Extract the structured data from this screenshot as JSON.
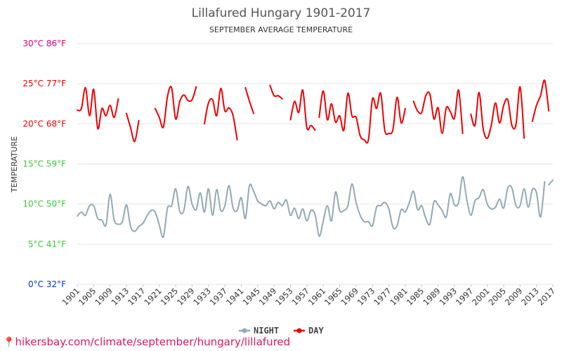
{
  "chart_data": {
    "type": "line",
    "title": "Lillafured Hungary 1901-2017",
    "subtitle": "SEPTEMBER AVERAGE TEMPERATURE",
    "ylabel": "TEMPERATURE",
    "ylim": [
      0,
      30
    ],
    "xlim": [
      1901,
      2017
    ],
    "y_ticks": [
      {
        "value": 0,
        "label": "0°C 32°F",
        "color": "#0033cc"
      },
      {
        "value": 5,
        "label": "5°C 41°F",
        "color": "#33cc33"
      },
      {
        "value": 10,
        "label": "10°C 50°F",
        "color": "#33cc33"
      },
      {
        "value": 15,
        "label": "15°C 59°F",
        "color": "#33cc33"
      },
      {
        "value": 20,
        "label": "20°C 68°F",
        "color": "#ee0000"
      },
      {
        "value": 25,
        "label": "25°C 77°F",
        "color": "#ee0000"
      },
      {
        "value": 30,
        "label": "30°C 86°F",
        "color": "#dd0077"
      }
    ],
    "x_ticks": [
      1901,
      1905,
      1909,
      1913,
      1917,
      1921,
      1925,
      1929,
      1933,
      1937,
      1941,
      1945,
      1949,
      1953,
      1957,
      1961,
      1965,
      1969,
      1973,
      1977,
      1981,
      1985,
      1989,
      1993,
      1997,
      2001,
      2005,
      2009,
      2013,
      2017
    ],
    "grid": true,
    "legend_position": "bottom-center",
    "series": [
      {
        "name": "NIGHT",
        "color": "#90aab6",
        "points": [
          [
            1901,
            8.5
          ],
          [
            1902,
            9
          ],
          [
            1903,
            8.6
          ],
          [
            1904,
            9.8
          ],
          [
            1905,
            9.8
          ],
          [
            1906,
            8.2
          ],
          [
            1907,
            8
          ],
          [
            1908,
            7.4
          ],
          [
            1909,
            11.2
          ],
          [
            1910,
            8
          ],
          [
            1911,
            7.5
          ],
          [
            1912,
            7.8
          ],
          [
            1913,
            9.9
          ],
          [
            1914,
            7.2
          ],
          [
            1915,
            6.6
          ],
          [
            1916,
            7.2
          ],
          [
            1917,
            7.6
          ],
          [
            1918,
            8.5
          ],
          [
            1919,
            9.2
          ],
          [
            1920,
            9
          ],
          [
            1921,
            7.4
          ],
          [
            1922,
            5.9
          ],
          [
            1923,
            9.5
          ],
          [
            1924,
            9.8
          ],
          [
            1925,
            11.9
          ],
          [
            1926,
            9.1
          ],
          [
            1927,
            9.2
          ],
          [
            1928,
            12.2
          ],
          [
            1929,
            10
          ],
          [
            1930,
            9.3
          ],
          [
            1931,
            11.4
          ],
          [
            1932,
            9
          ],
          [
            1933,
            11.9
          ],
          [
            1934,
            8.6
          ],
          [
            1935,
            11.8
          ],
          [
            1936,
            9.2
          ],
          [
            1937,
            9.8
          ],
          [
            1938,
            12.3
          ],
          [
            1939,
            9.5
          ],
          [
            1940,
            9.2
          ],
          [
            1941,
            10.8
          ],
          [
            1942,
            8.2
          ],
          [
            1943,
            12.3
          ],
          [
            1944,
            11.6
          ],
          [
            1945,
            10.4
          ],
          [
            1946,
            10
          ],
          [
            1947,
            9.8
          ],
          [
            1948,
            10.4
          ],
          [
            1949,
            9.4
          ],
          [
            1950,
            10.2
          ],
          [
            1951,
            9.8
          ],
          [
            1952,
            10.5
          ],
          [
            1953,
            8.6
          ],
          [
            1954,
            9.5
          ],
          [
            1955,
            8.2
          ],
          [
            1956,
            9.4
          ],
          [
            1957,
            7.9
          ],
          [
            1958,
            9.2
          ],
          [
            1959,
            8.7
          ],
          [
            1960,
            6
          ],
          [
            1961,
            7.9
          ],
          [
            1962,
            9.8
          ],
          [
            1963,
            7.9
          ],
          [
            1964,
            11.5
          ],
          [
            1965,
            9.2
          ],
          [
            1966,
            9.2
          ],
          [
            1967,
            9.8
          ],
          [
            1968,
            12.5
          ],
          [
            1969,
            10.2
          ],
          [
            1970,
            8.6
          ],
          [
            1971,
            7.8
          ],
          [
            1972,
            7.8
          ],
          [
            1973,
            7.3
          ],
          [
            1974,
            9.6
          ],
          [
            1975,
            9.8
          ],
          [
            1976,
            10.2
          ],
          [
            1977,
            9.4
          ],
          [
            1978,
            7.1
          ],
          [
            1979,
            7.3
          ],
          [
            1980,
            9.3
          ],
          [
            1981,
            9
          ],
          [
            1982,
            10.2
          ],
          [
            1983,
            11.6
          ],
          [
            1984,
            9.3
          ],
          [
            1985,
            9.8
          ],
          [
            1986,
            8.2
          ],
          [
            1987,
            7.5
          ],
          [
            1988,
            10.3
          ],
          [
            1989,
            9.9
          ],
          [
            1990,
            9.2
          ],
          [
            1991,
            8.4
          ],
          [
            1992,
            11.3
          ],
          [
            1993,
            9.9
          ],
          [
            1994,
            10.2
          ],
          [
            1995,
            13.4
          ],
          [
            1996,
            10.6
          ],
          [
            1997,
            8.6
          ],
          [
            1998,
            10.4
          ],
          [
            1999,
            10.8
          ],
          [
            2000,
            11.8
          ],
          [
            2001,
            10
          ],
          [
            2002,
            9.4
          ],
          [
            2003,
            9.6
          ],
          [
            2004,
            10.6
          ],
          [
            2005,
            9.5
          ],
          [
            2006,
            12
          ],
          [
            2007,
            12
          ],
          [
            2008,
            9.8
          ],
          [
            2009,
            9.8
          ],
          [
            2010,
            11.9
          ],
          [
            2011,
            9.6
          ],
          [
            2012,
            11.8
          ],
          [
            2013,
            11.4
          ],
          [
            2014,
            8.4
          ],
          [
            2015,
            12.8
          ],
          [
            null,
            null
          ],
          [
            2016,
            12.4
          ],
          [
            2017,
            13
          ]
        ]
      },
      {
        "name": "DAY",
        "color": "#ee0000",
        "points": [
          [
            1901,
            21.7
          ],
          [
            1902,
            21.9
          ],
          [
            1903,
            24.5
          ],
          [
            1904,
            21
          ],
          [
            1905,
            24.3
          ],
          [
            1906,
            19.4
          ],
          [
            1907,
            21.9
          ],
          [
            1908,
            21
          ],
          [
            1909,
            22.3
          ],
          [
            1910,
            20.8
          ],
          [
            1911,
            23.1
          ],
          [
            null,
            null
          ],
          [
            1913,
            21.3
          ],
          [
            1914,
            19.5
          ],
          [
            1915,
            17.8
          ],
          [
            1916,
            20.4
          ],
          [
            null,
            null
          ],
          [
            1920,
            21.9
          ],
          [
            1921,
            20.8
          ],
          [
            1922,
            19.6
          ],
          [
            1923,
            23.4
          ],
          [
            1924,
            24.5
          ],
          [
            1925,
            20.6
          ],
          [
            1926,
            22.8
          ],
          [
            1927,
            23.6
          ],
          [
            1928,
            22.9
          ],
          [
            1929,
            23
          ],
          [
            1930,
            24.6
          ],
          [
            null,
            null
          ],
          [
            1932,
            20
          ],
          [
            1933,
            22.6
          ],
          [
            1934,
            23
          ],
          [
            1935,
            21
          ],
          [
            1936,
            24.4
          ],
          [
            1937,
            21.6
          ],
          [
            1938,
            22
          ],
          [
            1939,
            21
          ],
          [
            1940,
            18
          ],
          [
            null,
            null
          ],
          [
            1942,
            24.5
          ],
          [
            1943,
            22.8
          ],
          [
            1944,
            21.3
          ],
          [
            null,
            null
          ],
          [
            1948,
            24.8
          ],
          [
            1949,
            23.5
          ],
          [
            1950,
            23.5
          ],
          [
            1951,
            23.1
          ],
          [
            null,
            null
          ],
          [
            1953,
            20.5
          ],
          [
            1954,
            22.8
          ],
          [
            1955,
            21.4
          ],
          [
            1956,
            24.2
          ],
          [
            1957,
            19.5
          ],
          [
            1958,
            19.8
          ],
          [
            1959,
            19.2
          ],
          [
            null,
            null
          ],
          [
            1960,
            20.8
          ],
          [
            1961,
            24.1
          ],
          [
            1962,
            20.5
          ],
          [
            1963,
            22.5
          ],
          [
            1964,
            20.2
          ],
          [
            1965,
            21
          ],
          [
            1966,
            19.2
          ],
          [
            1967,
            23.8
          ],
          [
            1968,
            21
          ],
          [
            1969,
            20.8
          ],
          [
            1970,
            18.5
          ],
          [
            1971,
            18
          ],
          [
            1972,
            18
          ],
          [
            1973,
            23.1
          ],
          [
            1974,
            21.9
          ],
          [
            1975,
            23.8
          ],
          [
            1976,
            19.2
          ],
          [
            1977,
            18.8
          ],
          [
            1978,
            19.3
          ],
          [
            1979,
            23.3
          ],
          [
            1980,
            20.1
          ],
          [
            1981,
            21.9
          ],
          [
            null,
            null
          ],
          [
            1983,
            22.8
          ],
          [
            1984,
            21.6
          ],
          [
            1985,
            21.4
          ],
          [
            1986,
            23.5
          ],
          [
            1987,
            23.7
          ],
          [
            1988,
            20.6
          ],
          [
            1989,
            22
          ],
          [
            1990,
            18.8
          ],
          [
            1991,
            22
          ],
          [
            1992,
            21.5
          ],
          [
            1993,
            20.7
          ],
          [
            1994,
            24.2
          ],
          [
            1995,
            18.8
          ],
          [
            null,
            null
          ],
          [
            1997,
            21.2
          ],
          [
            1998,
            19.8
          ],
          [
            1999,
            23.9
          ],
          [
            2000,
            19.4
          ],
          [
            2001,
            18.2
          ],
          [
            2002,
            19.9
          ],
          [
            2003,
            22.6
          ],
          [
            2004,
            20.1
          ],
          [
            2005,
            22.3
          ],
          [
            2006,
            23
          ],
          [
            2007,
            19.8
          ],
          [
            2008,
            19.9
          ],
          [
            2009,
            24.6
          ],
          [
            2010,
            18.2
          ],
          [
            null,
            null
          ],
          [
            2012,
            20.3
          ],
          [
            2013,
            22.3
          ],
          [
            2014,
            23.5
          ],
          [
            2015,
            25.4
          ],
          [
            2016,
            21.6
          ]
        ]
      }
    ]
  },
  "source": {
    "text": "hikersbay.com/climate/september/hungary/lillafured",
    "pin_icon": "map-pin-icon"
  }
}
